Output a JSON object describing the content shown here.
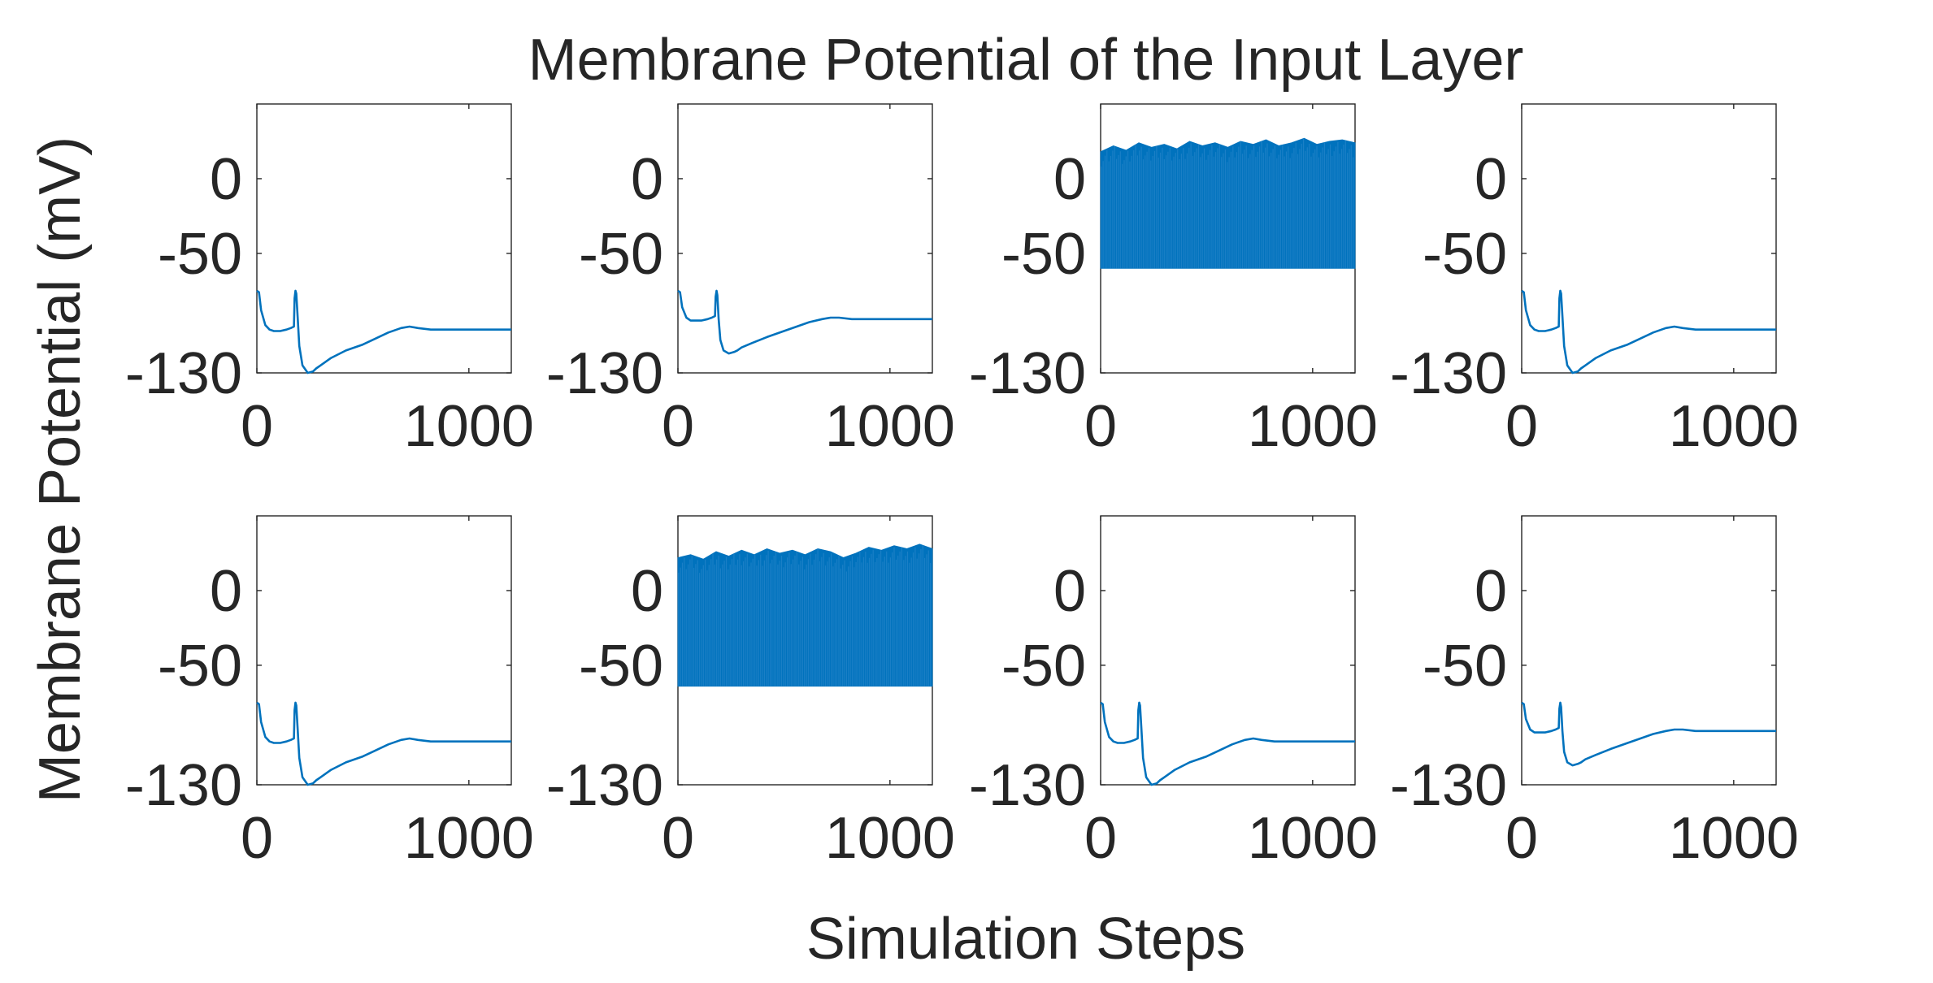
{
  "chart_data": {
    "type": "line",
    "title": "Membrane Potential of the Input Layer",
    "xlabel": "Simulation Steps",
    "ylabel": "Membrane Potential (mV)",
    "line_color": "#0072BD",
    "grid": false,
    "layout": "2 rows x 4 columns",
    "xlim": [
      0,
      1200
    ],
    "ylim": [
      -130,
      50
    ],
    "x_ticks": [
      0,
      1000
    ],
    "x_tick_labels": [
      "0",
      "1000"
    ],
    "y_ticks": [
      -130,
      -50,
      0
    ],
    "y_tick_labels": [
      "-130",
      "-50",
      "0"
    ],
    "subplots": [
      {
        "row": 1,
        "col": 1,
        "kind": "decay",
        "x": [
          0,
          10,
          20,
          40,
          60,
          80,
          110,
          140,
          160,
          175,
          178,
          182,
          186,
          192,
          200,
          215,
          240,
          265,
          280,
          300,
          350,
          420,
          500,
          560,
          620,
          680,
          720,
          760,
          820,
          900,
          1000,
          1100,
          1200
        ],
        "y": [
          -75,
          -76,
          -88,
          -98,
          -101,
          -102,
          -102,
          -101,
          -100,
          -99,
          -80,
          -75,
          -77,
          -92,
          -112,
          -125,
          -130,
          -129,
          -127,
          -125,
          -120,
          -115,
          -111,
          -107,
          -103,
          -100,
          -99,
          -100,
          -101,
          -101,
          -101,
          -101,
          -101
        ]
      },
      {
        "row": 1,
        "col": 2,
        "kind": "decay",
        "x": [
          0,
          10,
          20,
          40,
          60,
          80,
          110,
          140,
          160,
          175,
          178,
          182,
          186,
          192,
          200,
          215,
          240,
          265,
          280,
          300,
          350,
          420,
          500,
          560,
          620,
          680,
          720,
          760,
          820,
          900,
          1000,
          1100,
          1200
        ],
        "y": [
          -75,
          -76,
          -86,
          -93,
          -95,
          -95,
          -95,
          -94,
          -93,
          -92,
          -79,
          -75,
          -78,
          -94,
          -108,
          -115,
          -117,
          -116,
          -115,
          -113,
          -110,
          -106,
          -102,
          -99,
          -96,
          -94,
          -93,
          -93,
          -94,
          -94,
          -94,
          -94,
          -94
        ]
      },
      {
        "row": 1,
        "col": 3,
        "kind": "spiking",
        "x": [
          0,
          1200
        ],
        "y_min": -60,
        "y_max": 27,
        "envelope_x": [
          0,
          60,
          120,
          180,
          240,
          300,
          360,
          420,
          480,
          540,
          600,
          660,
          720,
          780,
          840,
          900,
          960,
          1020,
          1080,
          1140,
          1200
        ],
        "envelope_y": [
          18,
          22,
          19,
          24,
          21,
          23,
          20,
          25,
          22,
          24,
          21,
          25,
          23,
          26,
          22,
          24,
          27,
          23,
          25,
          26,
          24
        ]
      },
      {
        "row": 1,
        "col": 4,
        "kind": "decay",
        "x": [
          0,
          10,
          20,
          40,
          60,
          80,
          110,
          140,
          160,
          175,
          178,
          182,
          186,
          192,
          200,
          215,
          240,
          265,
          280,
          300,
          350,
          420,
          500,
          560,
          620,
          680,
          720,
          760,
          820,
          900,
          1000,
          1100,
          1200
        ],
        "y": [
          -75,
          -76,
          -88,
          -98,
          -101,
          -102,
          -102,
          -101,
          -100,
          -99,
          -80,
          -75,
          -77,
          -92,
          -112,
          -125,
          -130,
          -129,
          -127,
          -125,
          -120,
          -115,
          -111,
          -107,
          -103,
          -100,
          -99,
          -100,
          -101,
          -101,
          -101,
          -101,
          -101
        ]
      },
      {
        "row": 2,
        "col": 1,
        "kind": "decay",
        "x": [
          0,
          10,
          20,
          40,
          60,
          80,
          110,
          140,
          160,
          175,
          178,
          182,
          186,
          192,
          200,
          215,
          240,
          265,
          280,
          300,
          350,
          420,
          500,
          560,
          620,
          680,
          720,
          760,
          820,
          900,
          1000,
          1100,
          1200
        ],
        "y": [
          -75,
          -76,
          -88,
          -98,
          -101,
          -102,
          -102,
          -101,
          -100,
          -99,
          -80,
          -75,
          -77,
          -92,
          -112,
          -125,
          -130,
          -129,
          -127,
          -125,
          -120,
          -115,
          -111,
          -107,
          -103,
          -100,
          -99,
          -100,
          -101,
          -101,
          -101,
          -101,
          -101
        ]
      },
      {
        "row": 2,
        "col": 2,
        "kind": "spiking",
        "x": [
          0,
          1200
        ],
        "y_min": -64,
        "y_max": 31,
        "envelope_x": [
          0,
          60,
          120,
          180,
          240,
          300,
          360,
          420,
          480,
          540,
          600,
          660,
          720,
          780,
          840,
          900,
          960,
          1020,
          1080,
          1140,
          1200
        ],
        "envelope_y": [
          22,
          24,
          21,
          26,
          23,
          27,
          24,
          28,
          25,
          27,
          24,
          28,
          26,
          22,
          25,
          29,
          27,
          30,
          28,
          31,
          28
        ]
      },
      {
        "row": 2,
        "col": 3,
        "kind": "decay",
        "x": [
          0,
          10,
          20,
          40,
          60,
          80,
          110,
          140,
          160,
          175,
          178,
          182,
          186,
          192,
          200,
          215,
          240,
          265,
          280,
          300,
          350,
          420,
          500,
          560,
          620,
          680,
          720,
          760,
          820,
          900,
          1000,
          1100,
          1200
        ],
        "y": [
          -75,
          -76,
          -88,
          -98,
          -101,
          -102,
          -102,
          -101,
          -100,
          -99,
          -80,
          -75,
          -77,
          -92,
          -112,
          -125,
          -130,
          -129,
          -127,
          -125,
          -120,
          -115,
          -111,
          -107,
          -103,
          -100,
          -99,
          -100,
          -101,
          -101,
          -101,
          -101,
          -101
        ]
      },
      {
        "row": 2,
        "col": 4,
        "kind": "decay",
        "x": [
          0,
          10,
          20,
          40,
          60,
          80,
          110,
          140,
          160,
          175,
          178,
          182,
          186,
          192,
          200,
          215,
          240,
          265,
          280,
          300,
          350,
          420,
          500,
          560,
          620,
          680,
          720,
          760,
          820,
          900,
          1000,
          1100,
          1200
        ],
        "y": [
          -75,
          -76,
          -86,
          -93,
          -95,
          -95,
          -95,
          -94,
          -93,
          -92,
          -79,
          -75,
          -78,
          -94,
          -108,
          -115,
          -117,
          -116,
          -115,
          -113,
          -110,
          -106,
          -102,
          -99,
          -96,
          -94,
          -93,
          -93,
          -94,
          -94,
          -94,
          -94,
          -94
        ]
      }
    ]
  }
}
